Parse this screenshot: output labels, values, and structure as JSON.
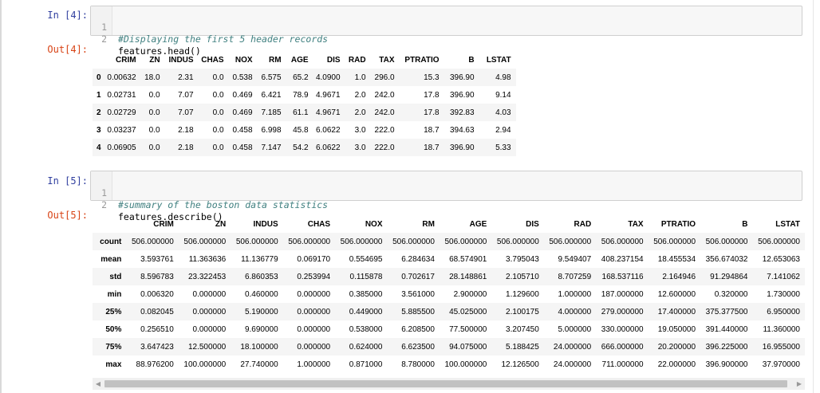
{
  "cells": [
    {
      "in_prompt": "In [4]:",
      "out_prompt": "Out[4]:",
      "code": [
        {
          "n": "1",
          "text": "#Displaying the first 5 header records",
          "comment": true
        },
        {
          "n": "2",
          "text": "features.head()",
          "comment": false
        }
      ],
      "table": {
        "columns": [
          "",
          "CRIM",
          "ZN",
          "INDUS",
          "CHAS",
          "NOX",
          "RM",
          "AGE",
          "DIS",
          "RAD",
          "TAX",
          "PTRATIO",
          "B",
          "LSTAT"
        ],
        "rows": [
          [
            "0",
            "0.00632",
            "18.0",
            "2.31",
            "0.0",
            "0.538",
            "6.575",
            "65.2",
            "4.0900",
            "1.0",
            "296.0",
            "15.3",
            "396.90",
            "4.98"
          ],
          [
            "1",
            "0.02731",
            "0.0",
            "7.07",
            "0.0",
            "0.469",
            "6.421",
            "78.9",
            "4.9671",
            "2.0",
            "242.0",
            "17.8",
            "396.90",
            "9.14"
          ],
          [
            "2",
            "0.02729",
            "0.0",
            "7.07",
            "0.0",
            "0.469",
            "7.185",
            "61.1",
            "4.9671",
            "2.0",
            "242.0",
            "17.8",
            "392.83",
            "4.03"
          ],
          [
            "3",
            "0.03237",
            "0.0",
            "2.18",
            "0.0",
            "0.458",
            "6.998",
            "45.8",
            "6.0622",
            "3.0",
            "222.0",
            "18.7",
            "394.63",
            "2.94"
          ],
          [
            "4",
            "0.06905",
            "0.0",
            "2.18",
            "0.0",
            "0.458",
            "7.147",
            "54.2",
            "6.0622",
            "3.0",
            "222.0",
            "18.7",
            "396.90",
            "5.33"
          ]
        ]
      }
    },
    {
      "in_prompt": "In [5]:",
      "out_prompt": "Out[5]:",
      "code": [
        {
          "n": "1",
          "text": "#summary of the boston data statistics",
          "comment": true
        },
        {
          "n": "2",
          "text": "features.describe()",
          "comment": false
        }
      ],
      "table": {
        "columns": [
          "",
          "CRIM",
          "ZN",
          "INDUS",
          "CHAS",
          "NOX",
          "RM",
          "AGE",
          "DIS",
          "RAD",
          "TAX",
          "PTRATIO",
          "B",
          "LSTAT"
        ],
        "rows": [
          [
            "count",
            "506.000000",
            "506.000000",
            "506.000000",
            "506.000000",
            "506.000000",
            "506.000000",
            "506.000000",
            "506.000000",
            "506.000000",
            "506.000000",
            "506.000000",
            "506.000000",
            "506.000000"
          ],
          [
            "mean",
            "3.593761",
            "11.363636",
            "11.136779",
            "0.069170",
            "0.554695",
            "6.284634",
            "68.574901",
            "3.795043",
            "9.549407",
            "408.237154",
            "18.455534",
            "356.674032",
            "12.653063"
          ],
          [
            "std",
            "8.596783",
            "23.322453",
            "6.860353",
            "0.253994",
            "0.115878",
            "0.702617",
            "28.148861",
            "2.105710",
            "8.707259",
            "168.537116",
            "2.164946",
            "91.294864",
            "7.141062"
          ],
          [
            "min",
            "0.006320",
            "0.000000",
            "0.460000",
            "0.000000",
            "0.385000",
            "3.561000",
            "2.900000",
            "1.129600",
            "1.000000",
            "187.000000",
            "12.600000",
            "0.320000",
            "1.730000"
          ],
          [
            "25%",
            "0.082045",
            "0.000000",
            "5.190000",
            "0.000000",
            "0.449000",
            "5.885500",
            "45.025000",
            "2.100175",
            "4.000000",
            "279.000000",
            "17.400000",
            "375.377500",
            "6.950000"
          ],
          [
            "50%",
            "0.256510",
            "0.000000",
            "9.690000",
            "0.000000",
            "0.538000",
            "6.208500",
            "77.500000",
            "3.207450",
            "5.000000",
            "330.000000",
            "19.050000",
            "391.440000",
            "11.360000"
          ],
          [
            "75%",
            "3.647423",
            "12.500000",
            "18.100000",
            "0.000000",
            "0.624000",
            "6.623500",
            "94.075000",
            "5.188425",
            "24.000000",
            "666.000000",
            "20.200000",
            "396.225000",
            "16.955000"
          ],
          [
            "max",
            "88.976200",
            "100.000000",
            "27.740000",
            "1.000000",
            "0.871000",
            "8.780000",
            "100.000000",
            "12.126500",
            "24.000000",
            "711.000000",
            "22.000000",
            "396.900000",
            "37.970000"
          ]
        ]
      }
    }
  ],
  "scrollbar": {
    "left_arrow": "◀",
    "right_arrow": "▶"
  }
}
